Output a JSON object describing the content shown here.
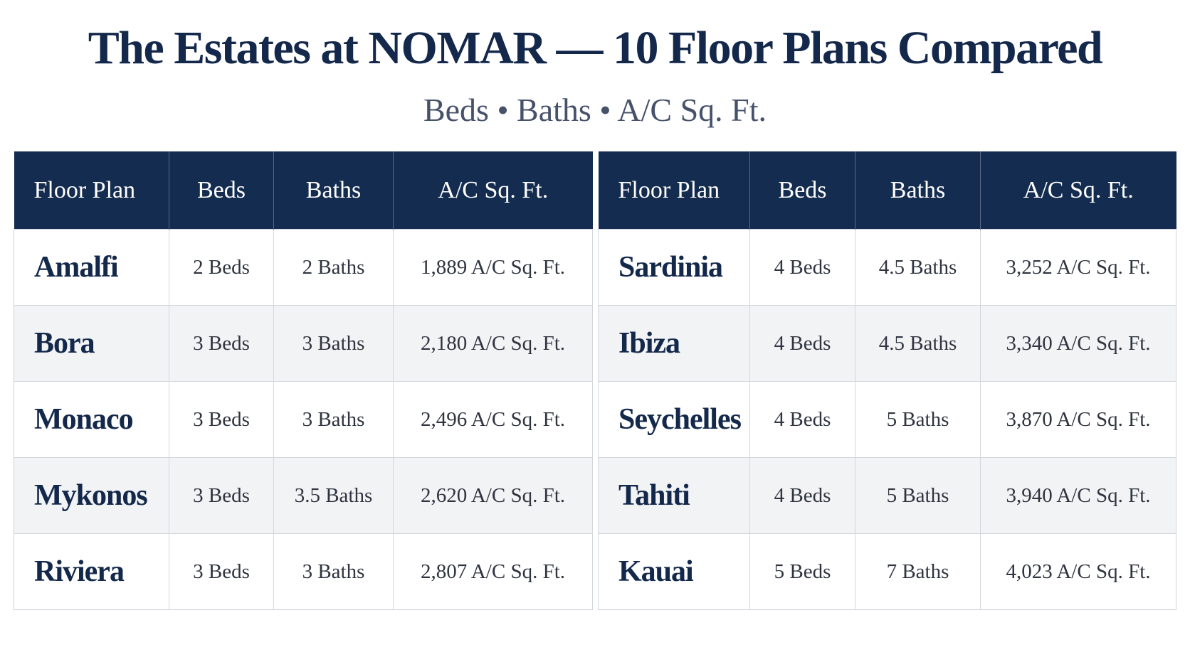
{
  "header": {
    "title": "The Estates at NOMAR — 10 Floor Plans Compared",
    "subtitle": "Beds • Baths • A/C Sq. Ft."
  },
  "tables": [
    {
      "columns": [
        "Floor Plan",
        "Beds",
        "Baths",
        "A/C Sq. Ft."
      ],
      "rows": [
        [
          "Amalfi",
          "2 Beds",
          "2 Baths",
          "1,889 A/C Sq. Ft."
        ],
        [
          "Bora",
          "3 Beds",
          "3 Baths",
          "2,180 A/C Sq. Ft."
        ],
        [
          "Monaco",
          "3 Beds",
          "3 Baths",
          "2,496 A/C Sq. Ft."
        ],
        [
          "Mykonos",
          "3 Beds",
          "3.5 Baths",
          "2,620 A/C Sq. Ft."
        ],
        [
          "Riviera",
          "3 Beds",
          "3 Baths",
          "2,807 A/C Sq. Ft."
        ]
      ]
    },
    {
      "columns": [
        "Floor Plan",
        "Beds",
        "Baths",
        "A/C Sq. Ft."
      ],
      "rows": [
        [
          "Sardinia",
          "4 Beds",
          "4.5 Baths",
          "3,252 A/C Sq. Ft."
        ],
        [
          "Ibiza",
          "4 Beds",
          "4.5 Baths",
          "3,340 A/C Sq. Ft."
        ],
        [
          "Seychelles",
          "4 Beds",
          "5 Baths",
          "3,870 A/C Sq. Ft."
        ],
        [
          "Tahiti",
          "4 Beds",
          "5 Baths",
          "3,940 A/C Sq. Ft."
        ],
        [
          "Kauai",
          "5 Beds",
          "7 Baths",
          "4,023 A/C Sq. Ft."
        ]
      ]
    }
  ]
}
